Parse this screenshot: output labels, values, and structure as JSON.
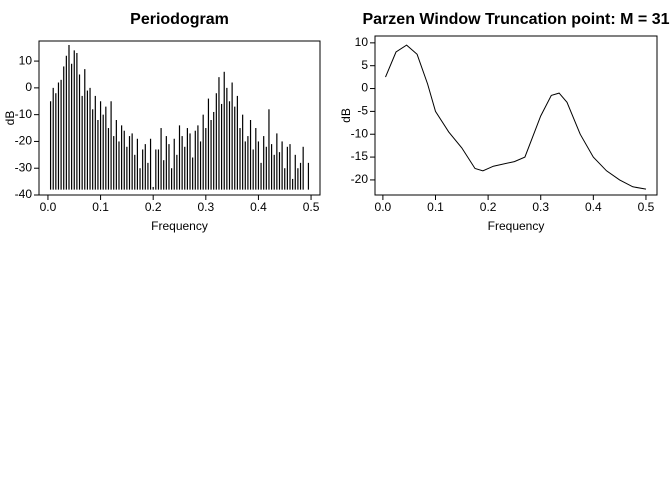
{
  "chart_data": [
    {
      "type": "spike",
      "title": "Periodogram",
      "xlabel": "Frequency",
      "ylabel": "dB",
      "color": "#000000",
      "x": [
        0.005,
        0.01,
        0.015,
        0.02,
        0.025,
        0.03,
        0.035,
        0.04,
        0.045,
        0.05,
        0.055,
        0.06,
        0.065,
        0.07,
        0.075,
        0.08,
        0.085,
        0.09,
        0.095,
        0.1,
        0.105,
        0.11,
        0.115,
        0.12,
        0.125,
        0.13,
        0.135,
        0.14,
        0.145,
        0.15,
        0.155,
        0.16,
        0.165,
        0.17,
        0.175,
        0.18,
        0.185,
        0.19,
        0.195,
        0.2,
        0.205,
        0.21,
        0.215,
        0.22,
        0.225,
        0.23,
        0.235,
        0.24,
        0.245,
        0.25,
        0.255,
        0.26,
        0.265,
        0.27,
        0.275,
        0.28,
        0.285,
        0.29,
        0.295,
        0.3,
        0.305,
        0.31,
        0.315,
        0.32,
        0.325,
        0.33,
        0.335,
        0.34,
        0.345,
        0.35,
        0.355,
        0.36,
        0.365,
        0.37,
        0.375,
        0.38,
        0.385,
        0.39,
        0.395,
        0.4,
        0.405,
        0.41,
        0.415,
        0.42,
        0.425,
        0.43,
        0.435,
        0.44,
        0.445,
        0.45,
        0.455,
        0.46,
        0.465,
        0.47,
        0.475,
        0.48,
        0.485,
        0.49,
        0.495,
        0.5
      ],
      "values": [
        -5,
        0,
        -2,
        2,
        3,
        8,
        12,
        16,
        9,
        14,
        13,
        5,
        -3,
        7,
        -1,
        0,
        -8,
        -3,
        -12,
        -5,
        -10,
        -7,
        -15,
        -5,
        -18,
        -12,
        -20,
        -14,
        -16,
        -22,
        -18,
        -17,
        -25,
        -19,
        -30,
        -23,
        -21,
        -28,
        -19,
        -37,
        -23,
        -23,
        -15,
        -27,
        -18,
        -21,
        -30,
        -19,
        -25,
        -14,
        -18,
        -22,
        -15,
        -17,
        -26,
        -16,
        -14,
        -20,
        -10,
        -15,
        -4,
        -12,
        -9,
        -2,
        4,
        -6,
        6,
        0,
        -5,
        2,
        -7,
        -3,
        -15,
        -10,
        -20,
        -18,
        -12,
        -23,
        -15,
        -20,
        -28,
        -18,
        -22,
        -8,
        -21,
        -25,
        -17,
        -24,
        -20,
        -30,
        -22,
        -21,
        -34,
        -25,
        -30,
        -28,
        -22,
        -38,
        -28,
        -38
      ],
      "xlim": [
        -0.017,
        0.517
      ],
      "ylim": [
        -40,
        17.5
      ],
      "xticks": [
        {
          "value": 0,
          "label": "0.0"
        },
        0.1,
        0.2,
        0.3,
        0.4,
        0.5
      ],
      "yticks": [
        10,
        0,
        -10,
        -20,
        -30,
        -40
      ]
    },
    {
      "type": "line",
      "title": "Parzen Window Truncation point: M = 31",
      "xlabel": "Frequency",
      "ylabel": "dB",
      "color": "#000000",
      "x": [
        0.005,
        0.025,
        0.045,
        0.065,
        0.085,
        0.1,
        0.125,
        0.15,
        0.175,
        0.19,
        0.21,
        0.25,
        0.27,
        0.3,
        0.32,
        0.335,
        0.35,
        0.375,
        0.4,
        0.425,
        0.45,
        0.475,
        0.5
      ],
      "values": [
        2.5,
        8,
        9.5,
        7.5,
        1,
        -5,
        -9.5,
        -13,
        -17.5,
        -18,
        -17,
        -16,
        -15,
        -6,
        -1.5,
        -1,
        -3,
        -10,
        -15,
        -18,
        -20,
        -21.5,
        -22
      ],
      "xlim": [
        -0.015,
        0.521
      ],
      "ylim": [
        -23.3,
        11.5
      ],
      "xticks": [
        {
          "value": 0,
          "label": "0.0"
        },
        0.1,
        0.2,
        0.3,
        0.4,
        0.5
      ],
      "yticks": [
        10,
        5,
        0,
        -5,
        -10,
        -15,
        -20
      ]
    }
  ]
}
